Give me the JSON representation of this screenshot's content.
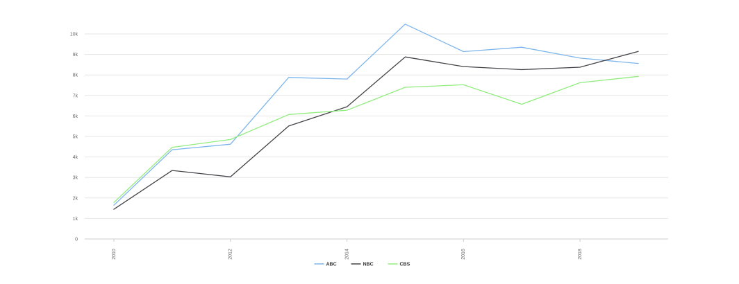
{
  "chart_data": {
    "type": "line",
    "title": "",
    "xlabel": "",
    "ylabel": "",
    "x": [
      2010,
      2011,
      2012,
      2013,
      2014,
      2015,
      2016,
      2017,
      2018,
      2019
    ],
    "x_tick_labels": [
      "2010",
      "2012",
      "2014",
      "2016",
      "2018"
    ],
    "y_tick_labels": [
      "0",
      "1k",
      "2k",
      "3k",
      "4k",
      "5k",
      "6k",
      "7k",
      "8k",
      "9k",
      "10k"
    ],
    "ylim": [
      0,
      10000
    ],
    "grid": true,
    "legend_position": "bottom-center",
    "series": [
      {
        "name": "ABC",
        "color": "#7cb5ec",
        "values": [
          1650,
          4350,
          4620,
          7880,
          7800,
          10480,
          9140,
          9350,
          8820,
          8560
        ]
      },
      {
        "name": "NBC",
        "color": "#434348",
        "values": [
          1450,
          3340,
          3030,
          5510,
          6450,
          8880,
          8410,
          8260,
          8380,
          9150
        ]
      },
      {
        "name": "CBS",
        "color": "#90ed7d",
        "values": [
          1780,
          4470,
          4850,
          6070,
          6280,
          7400,
          7520,
          6570,
          7620,
          7930
        ]
      }
    ]
  }
}
